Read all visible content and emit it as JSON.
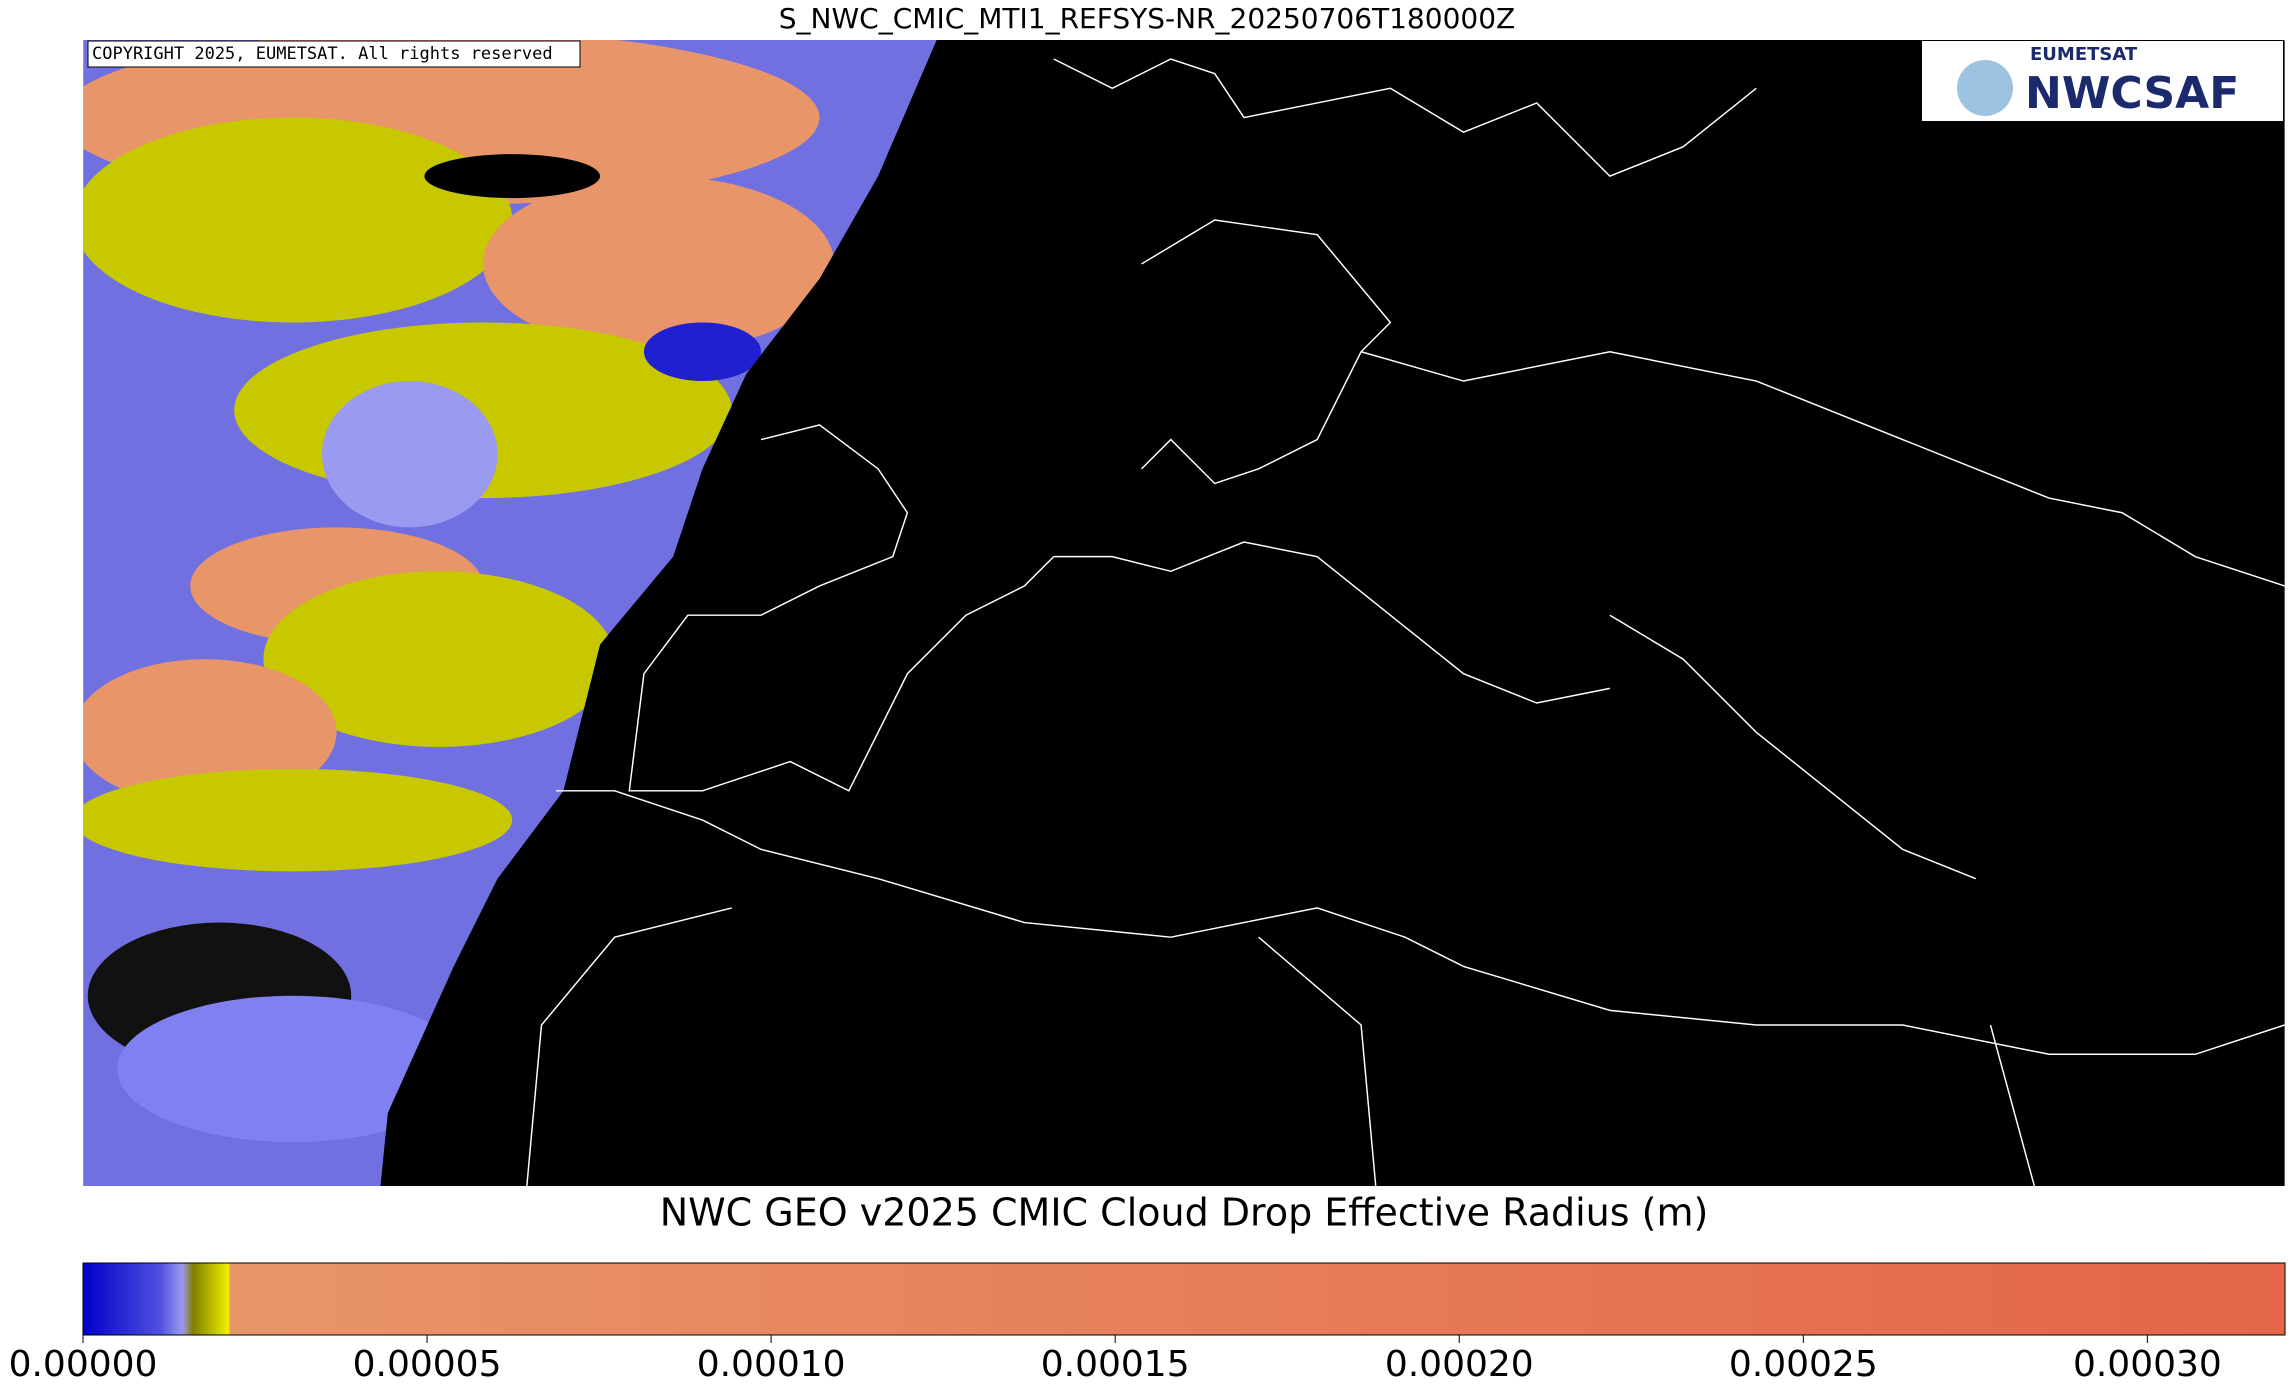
{
  "title": "S_NWC_CMIC_MTI1_REFSYS-NR_20250706T180000Z",
  "copyright": "COPYRIGHT 2025, EUMETSAT. All rights reserved",
  "logo": {
    "top": "EUMETSAT",
    "main": "NWCSAF"
  },
  "colorbar": {
    "title": "NWC GEO v2025 CMIC Cloud Drop Effective Radius (m)",
    "lim": [
      0,
      0.00032
    ],
    "ticks": [
      {
        "value": 0,
        "label": "0.00000"
      },
      {
        "value": 5e-05,
        "label": "0.00005"
      },
      {
        "value": 0.0001,
        "label": "0.00010"
      },
      {
        "value": 0.00015,
        "label": "0.00015"
      },
      {
        "value": 0.0002,
        "label": "0.00020"
      },
      {
        "value": 0.00025,
        "label": "0.00025"
      },
      {
        "value": 0.0003,
        "label": "0.00030"
      }
    ]
  }
}
